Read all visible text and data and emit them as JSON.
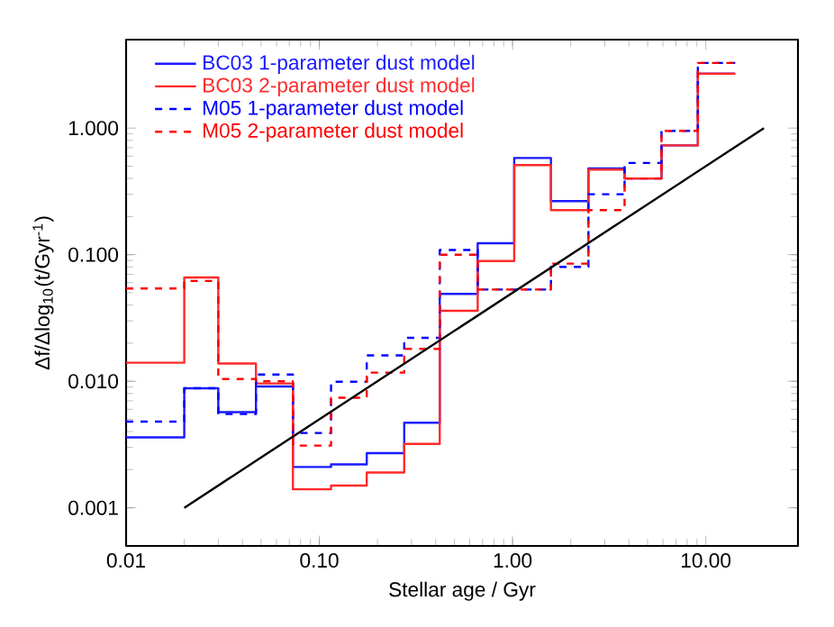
{
  "chart_data": {
    "type": "histogram",
    "xlabel": "Stellar age / Gyr",
    "ylabel": "Δf/Δlog$_{10}$(t/Gyr$^{-1}$)",
    "log": "xy",
    "bins": [
      0.01,
      0.02,
      0.03,
      0.047,
      0.073,
      0.115,
      0.176,
      0.275,
      0.42,
      0.66,
      1.02,
      1.58,
      2.47,
      3.8,
      5.9,
      9.1,
      14.2
    ],
    "series": [
      {
        "name": "BC03 1-parameter dust model",
        "color": "#1a1aff",
        "line_style": "solid",
        "values": [
          0.0036,
          0.0088,
          0.0057,
          0.0091,
          0.0021,
          0.0022,
          0.0027,
          0.0047,
          0.049,
          0.123,
          0.58,
          0.265,
          0.48,
          0.4,
          0.73,
          2.69
        ]
      },
      {
        "name": "BC03 2-parameter dust model",
        "color": "#ff2a2a",
        "line_style": "solid",
        "values": [
          0.014,
          0.066,
          0.0138,
          0.0096,
          0.0014,
          0.0015,
          0.0019,
          0.0032,
          0.036,
          0.089,
          0.51,
          0.225,
          0.47,
          0.4,
          0.73,
          2.69
        ]
      },
      {
        "name": "M05 1-parameter dust model",
        "color": "#0000ff",
        "line_style": "dashed",
        "values": [
          0.0048,
          0.0088,
          0.0055,
          0.0113,
          0.0039,
          0.0099,
          0.016,
          0.022,
          0.109,
          0.053,
          0.053,
          0.08,
          0.3,
          0.53,
          0.95,
          3.27
        ]
      },
      {
        "name": "M05 2-parameter dust model",
        "color": "#ff0000",
        "line_style": "dashed",
        "values": [
          0.054,
          0.062,
          0.0104,
          0.01,
          0.0031,
          0.0074,
          0.0117,
          0.018,
          0.1,
          0.053,
          0.053,
          0.085,
          0.225,
          0.4,
          0.95,
          3.27
        ]
      },
      {
        "type": "line",
        "color": "#000000",
        "line_style": "solid",
        "x": [
          0.02,
          20
        ],
        "values": [
          0.001,
          1.0
        ]
      }
    ],
    "xlim": [
      0.01,
      30
    ],
    "ylim": [
      0.0005,
      5
    ],
    "xticks": [
      0.01,
      {
        "value": 0.1,
        "label": "0.10"
      },
      {
        "value": 1,
        "label": "1.00"
      },
      {
        "value": 10,
        "label": "10.00"
      }
    ],
    "yticks": [
      0.001,
      {
        "value": 0.01,
        "label": "0.010"
      },
      {
        "value": 0.1,
        "label": "0.100"
      },
      {
        "value": 1,
        "label": "1.000"
      }
    ],
    "legend": "top left",
    "grid": false
  }
}
